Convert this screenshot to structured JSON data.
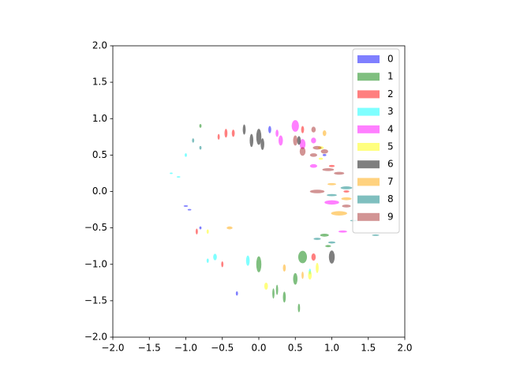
{
  "chart_data": {
    "type": "scatter",
    "marker": "ellipse",
    "alpha": 0.5,
    "xlim": [
      -2,
      2
    ],
    "ylim": [
      -2,
      2
    ],
    "xticks": [
      {
        "value": -2,
        "label": "−2.0"
      },
      {
        "value": -1.5,
        "label": "−1.5"
      },
      {
        "value": -1,
        "label": "−1.0"
      },
      {
        "value": -0.5,
        "label": "−0.5"
      },
      {
        "value": 0,
        "label": "0.0"
      },
      {
        "value": 0.5,
        "label": "0.5"
      },
      {
        "value": 1,
        "label": "1.0"
      },
      {
        "value": 1.5,
        "label": "1.5"
      },
      {
        "value": 2,
        "label": "2.0"
      }
    ],
    "yticks": [
      {
        "value": -2,
        "label": "−2.0"
      },
      {
        "value": -1.5,
        "label": "−1.5"
      },
      {
        "value": -1,
        "label": "−1.0"
      },
      {
        "value": -0.5,
        "label": "−0.5"
      },
      {
        "value": 0,
        "label": "0.0"
      },
      {
        "value": 0.5,
        "label": "0.5"
      },
      {
        "value": 1,
        "label": "1.0"
      },
      {
        "value": 1.5,
        "label": "1.5"
      },
      {
        "value": 2,
        "label": "2.0"
      }
    ],
    "legend": "upper right",
    "series": [
      {
        "name": "0",
        "color": "#0000ff",
        "x": [
          -1.0,
          0.15,
          -0.3,
          0.9,
          -0.95,
          -0.8
        ],
        "y": [
          -0.2,
          0.85,
          -1.4,
          0.5,
          -0.25,
          -0.5
        ],
        "widths": [
          0.06,
          0.04,
          0.03,
          0.05,
          0.05,
          0.03
        ],
        "heights": [
          0.02,
          0.1,
          0.06,
          0.03,
          0.02,
          0.04
        ]
      },
      {
        "name": "1",
        "color": "#008000",
        "x": [
          0.0,
          0.6,
          0.5,
          0.25,
          0.35,
          0.55,
          0.9,
          0.95,
          -0.8,
          0.2
        ],
        "y": [
          -1.0,
          -0.9,
          -1.2,
          -1.35,
          -1.45,
          -1.6,
          -0.6,
          -0.75,
          0.9,
          -1.4
        ],
        "widths": [
          0.07,
          0.12,
          0.06,
          0.03,
          0.04,
          0.03,
          0.12,
          0.08,
          0.03,
          0.03
        ],
        "heights": [
          0.22,
          0.17,
          0.16,
          0.14,
          0.15,
          0.12,
          0.04,
          0.03,
          0.05,
          0.14
        ]
      },
      {
        "name": "2",
        "color": "#ff0000",
        "x": [
          -0.45,
          -0.35,
          -0.55,
          -0.85,
          0.75,
          1.0,
          -0.5,
          1.2,
          0.6
        ],
        "y": [
          0.8,
          0.8,
          0.75,
          -0.55,
          -0.9,
          0.35,
          -1.0,
          0.0,
          0.85
        ],
        "widths": [
          0.04,
          0.04,
          0.03,
          0.03,
          0.06,
          0.08,
          0.03,
          0.08,
          0.04
        ],
        "heights": [
          0.12,
          0.1,
          0.08,
          0.08,
          0.1,
          0.03,
          0.08,
          0.03,
          0.1
        ]
      },
      {
        "name": "3",
        "color": "#00ffff",
        "x": [
          -1.1,
          -1.0,
          -0.6,
          -0.15,
          -1.2,
          0.7,
          -0.7
        ],
        "y": [
          0.2,
          0.5,
          -0.9,
          -0.95,
          0.25,
          -1.1,
          -0.95
        ],
        "widths": [
          0.05,
          0.03,
          0.05,
          0.05,
          0.04,
          0.03,
          0.03
        ],
        "heights": [
          0.02,
          0.05,
          0.09,
          0.14,
          0.02,
          0.08,
          0.06
        ]
      },
      {
        "name": "4",
        "color": "#ff00ff",
        "x": [
          0.5,
          0.3,
          0.6,
          0.75,
          1.0,
          0.75,
          1.15,
          0.25
        ],
        "y": [
          0.9,
          0.7,
          0.65,
          0.7,
          -0.15,
          0.35,
          -0.55,
          0.8
        ],
        "widths": [
          0.1,
          0.06,
          0.08,
          0.07,
          0.2,
          0.1,
          0.12,
          0.04
        ],
        "heights": [
          0.16,
          0.14,
          0.14,
          0.08,
          0.06,
          0.05,
          0.03,
          0.1
        ]
      },
      {
        "name": "5",
        "color": "#ffff00",
        "x": [
          0.8,
          0.1,
          0.7,
          0.85,
          -0.7,
          0.85
        ],
        "y": [
          -1.05,
          -1.3,
          -1.15,
          0.6,
          -0.55,
          0.45
        ],
        "widths": [
          0.04,
          0.05,
          0.05,
          0.08,
          0.03,
          0.06
        ],
        "heights": [
          0.14,
          0.1,
          0.12,
          0.04,
          0.06,
          0.03
        ]
      },
      {
        "name": "6",
        "color": "#000000",
        "x": [
          0.0,
          -0.1,
          0.05,
          1.0,
          -0.2,
          0.55
        ],
        "y": [
          0.75,
          0.7,
          0.65,
          -0.9,
          0.85,
          0.7
        ],
        "widths": [
          0.07,
          0.05,
          0.05,
          0.08,
          0.04,
          0.05
        ],
        "heights": [
          0.22,
          0.18,
          0.16,
          0.18,
          0.14,
          0.12
        ]
      },
      {
        "name": "7",
        "color": "#ffa500",
        "x": [
          1.1,
          0.9,
          -0.4,
          1.2,
          0.6,
          1.0,
          0.35
        ],
        "y": [
          -0.3,
          0.8,
          -0.5,
          -0.1,
          -1.15,
          0.1,
          -1.05
        ],
        "widths": [
          0.22,
          0.05,
          0.08,
          0.14,
          0.03,
          0.12,
          0.04
        ],
        "heights": [
          0.06,
          0.08,
          0.04,
          0.04,
          0.1,
          0.03,
          0.1
        ]
      },
      {
        "name": "8",
        "color": "#008080",
        "x": [
          -0.9,
          1.0,
          1.2,
          0.8,
          1.6,
          -0.8,
          1.0,
          1.3
        ],
        "y": [
          0.7,
          -0.7,
          0.05,
          -0.65,
          -0.6,
          0.6,
          -0.05,
          -0.4
        ],
        "widths": [
          0.03,
          0.1,
          0.16,
          0.1,
          0.1,
          0.03,
          0.14,
          0.1
        ],
        "heights": [
          0.06,
          0.03,
          0.04,
          0.03,
          0.02,
          0.05,
          0.03,
          0.02
        ]
      },
      {
        "name": "9",
        "color": "#a52a2a",
        "x": [
          0.75,
          0.95,
          0.75,
          0.8,
          0.8,
          1.1,
          0.5,
          0.9,
          1.2,
          0.6
        ],
        "y": [
          0.85,
          0.3,
          0.5,
          0.6,
          0.0,
          0.25,
          0.7,
          0.55,
          -0.2,
          0.55
        ],
        "widths": [
          0.06,
          0.16,
          0.1,
          0.12,
          0.2,
          0.14,
          0.06,
          0.1,
          0.12,
          0.08
        ],
        "heights": [
          0.08,
          0.04,
          0.05,
          0.05,
          0.05,
          0.04,
          0.14,
          0.06,
          0.04,
          0.12
        ]
      }
    ]
  }
}
